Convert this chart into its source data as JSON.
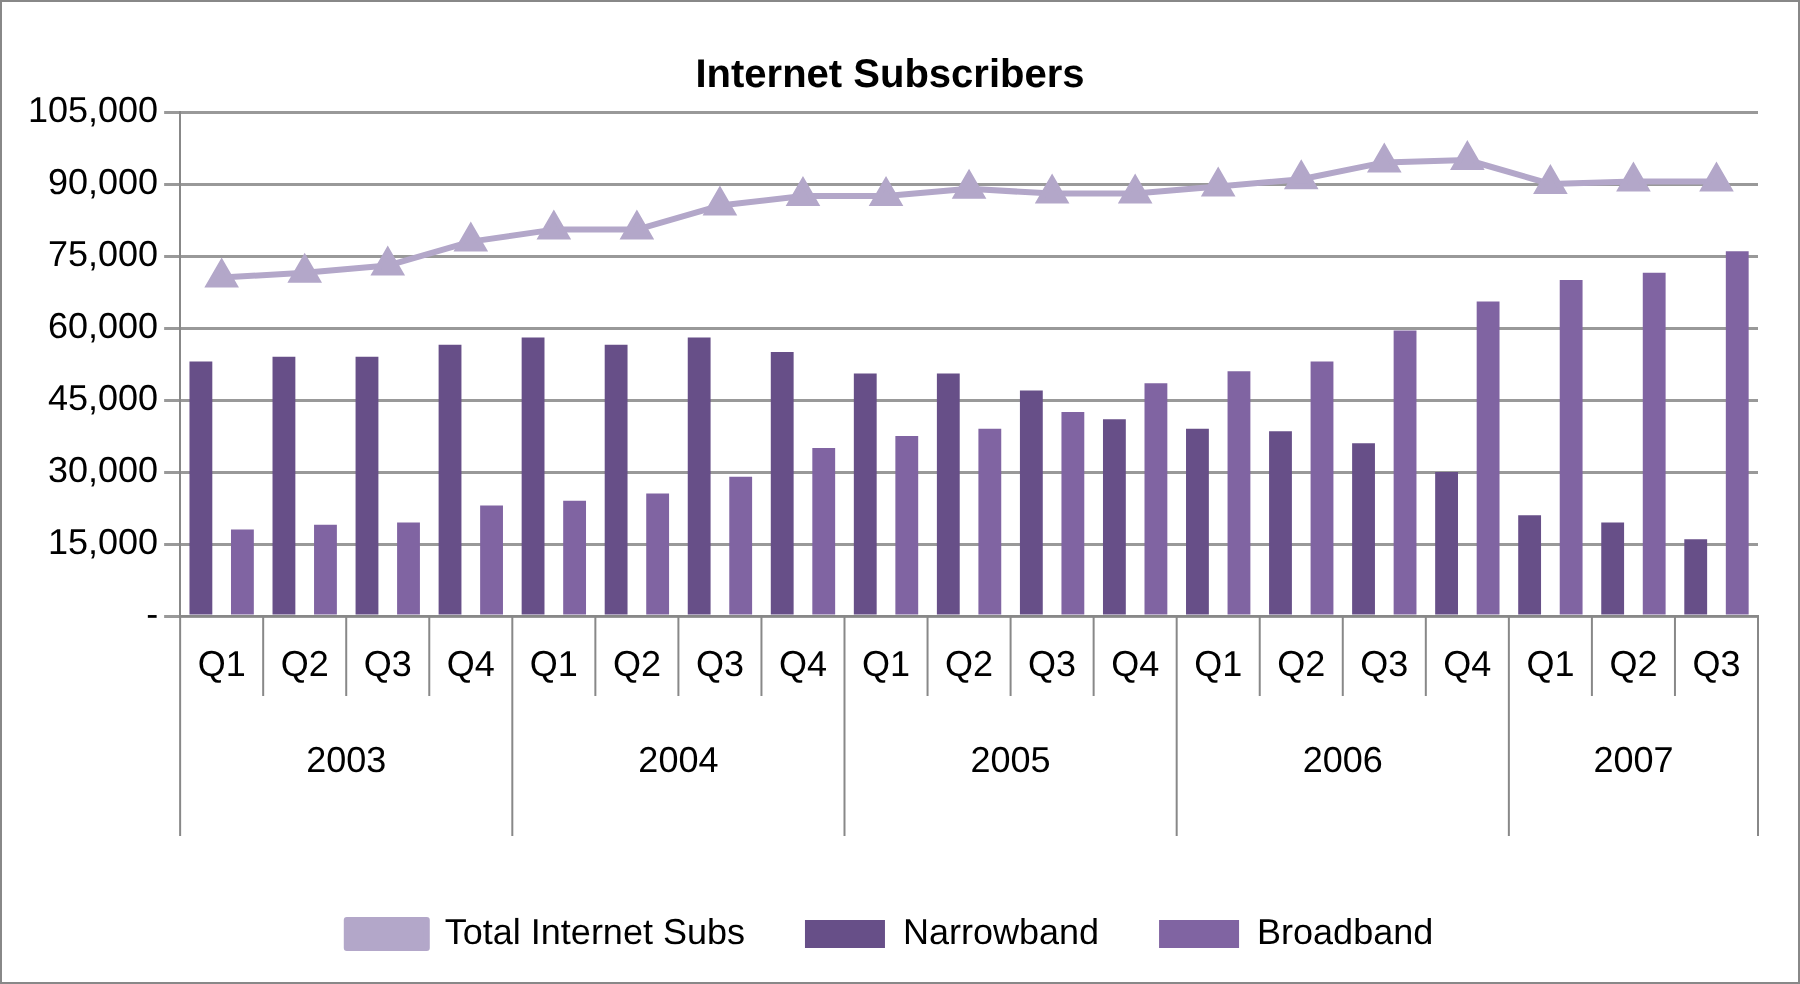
{
  "chart_data": {
    "type": "bar",
    "title": "Internet Subscribers",
    "categories": [
      "Q1",
      "Q2",
      "Q3",
      "Q4",
      "Q1",
      "Q2",
      "Q3",
      "Q4",
      "Q1",
      "Q2",
      "Q3",
      "Q4",
      "Q1",
      "Q2",
      "Q3",
      "Q4",
      "Q1",
      "Q2",
      "Q3"
    ],
    "series": [
      {
        "name": "Narrowband",
        "color": "#674f88",
        "values": [
          53000,
          54000,
          54000,
          56500,
          58000,
          56500,
          58000,
          55000,
          50500,
          50500,
          47000,
          41000,
          39000,
          38500,
          36000,
          30000,
          21000,
          19500,
          16000
        ]
      },
      {
        "name": "Broadband",
        "color": "#8064a2",
        "values": [
          18000,
          19000,
          19500,
          23000,
          24000,
          25500,
          29000,
          35000,
          37500,
          39000,
          42500,
          48500,
          51000,
          53000,
          59500,
          65500,
          70000,
          71500,
          76000
        ]
      },
      {
        "name": "Total Internet Subs",
        "type": "line",
        "color": "#b3a7c9",
        "marker": "triangle",
        "values": [
          70500,
          71500,
          73000,
          78000,
          80500,
          80500,
          85500,
          87500,
          87500,
          89000,
          88000,
          88000,
          89500,
          91000,
          94500,
          95000,
          90000,
          90500,
          90500
        ]
      }
    ],
    "annotations": [
      "2003",
      "2004",
      "2005",
      "2006",
      "2007"
    ],
    "ylim": [
      0,
      105000
    ],
    "yticks": [
      {
        "value": 0,
        "label": "-"
      },
      {
        "value": 15000,
        "label": "15,000"
      },
      {
        "value": 30000,
        "label": "30,000"
      },
      {
        "value": 45000,
        "label": "45,000"
      },
      {
        "value": 60000,
        "label": "60,000"
      },
      {
        "value": 75000,
        "label": "75,000"
      },
      {
        "value": 90000,
        "label": "90,000"
      },
      {
        "value": 105000,
        "label": "105,000"
      }
    ],
    "grid": "y",
    "legend": "bottom"
  }
}
